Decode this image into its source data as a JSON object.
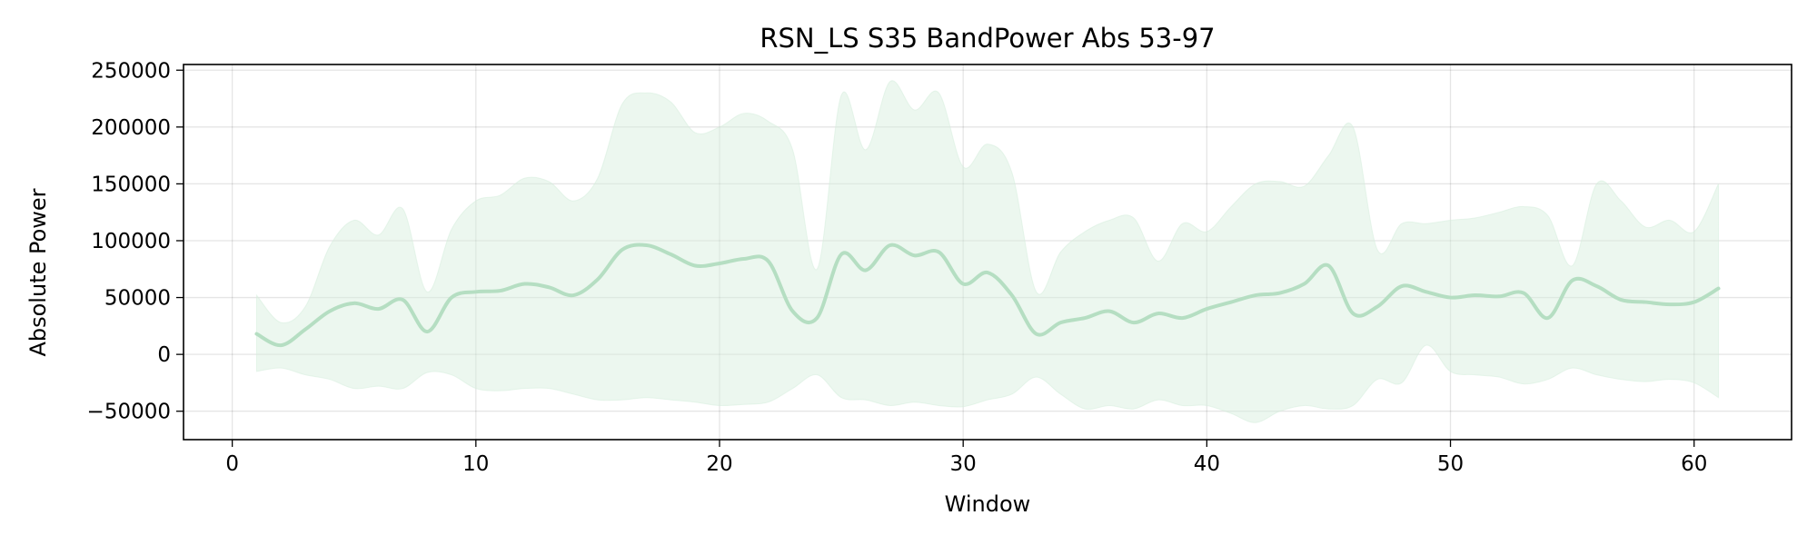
{
  "chart_data": {
    "type": "line",
    "title": "RSN_LS S35 BandPower Abs 53-97",
    "xlabel": "Window",
    "ylabel": "Absolute Power",
    "xlim": [
      -2,
      64
    ],
    "ylim": [
      -75000,
      255000
    ],
    "xticks": [
      0,
      10,
      20,
      30,
      40,
      50,
      60
    ],
    "yticks": [
      -50000,
      0,
      50000,
      100000,
      150000,
      200000,
      250000
    ],
    "ytick_labels": [
      "−50000",
      "0",
      "50000",
      "100000",
      "150000",
      "200000",
      "250000"
    ],
    "grid": true,
    "line_color": "#b5dec2",
    "band_color": "#d4eedb",
    "series": [
      {
        "x": [
          1,
          2,
          3,
          4,
          5,
          6,
          7,
          8,
          9,
          10,
          11,
          12,
          13,
          14,
          15,
          16,
          17,
          18,
          19,
          20,
          21,
          22,
          23,
          24,
          25,
          26,
          27,
          28,
          29,
          30,
          31,
          32,
          33,
          34,
          35,
          36,
          37,
          38,
          39,
          40,
          41,
          42,
          43,
          44,
          45,
          46,
          47,
          48,
          49,
          50,
          51,
          52,
          53,
          54,
          55,
          56,
          57,
          58,
          59,
          60,
          61
        ],
        "values": [
          18000,
          8000,
          22000,
          38000,
          45000,
          40000,
          48000,
          20000,
          50000,
          55000,
          56000,
          62000,
          59000,
          52000,
          66000,
          92000,
          96000,
          88000,
          78000,
          80000,
          84000,
          82000,
          38000,
          32000,
          88000,
          74000,
          96000,
          87000,
          90000,
          62000,
          72000,
          52000,
          18000,
          28000,
          32000,
          38000,
          28000,
          36000,
          32000,
          40000,
          46000,
          52000,
          54000,
          62000,
          78000,
          36000,
          42000,
          60000,
          55000,
          50000,
          52000,
          51000,
          54000,
          32000,
          65000,
          60000,
          48000,
          46000,
          44000,
          46000,
          58000
        ],
        "upper": [
          52000,
          28000,
          42000,
          95000,
          118000,
          105000,
          128000,
          55000,
          110000,
          135000,
          140000,
          155000,
          152000,
          135000,
          155000,
          220000,
          230000,
          222000,
          195000,
          200000,
          212000,
          205000,
          180000,
          75000,
          228000,
          180000,
          240000,
          215000,
          230000,
          165000,
          185000,
          160000,
          55000,
          90000,
          108000,
          118000,
          120000,
          82000,
          115000,
          108000,
          130000,
          150000,
          152000,
          148000,
          175000,
          200000,
          92000,
          115000,
          115000,
          118000,
          120000,
          125000,
          130000,
          122000,
          78000,
          150000,
          135000,
          112000,
          118000,
          108000,
          150000
        ],
        "lower": [
          -15000,
          -12000,
          -18000,
          -22000,
          -30000,
          -28000,
          -30000,
          -16000,
          -18000,
          -30000,
          -32000,
          -30000,
          -30000,
          -35000,
          -40000,
          -40000,
          -38000,
          -40000,
          -42000,
          -45000,
          -44000,
          -42000,
          -30000,
          -18000,
          -38000,
          -40000,
          -45000,
          -42000,
          -45000,
          -46000,
          -40000,
          -35000,
          -20000,
          -35000,
          -48000,
          -45000,
          -48000,
          -40000,
          -45000,
          -45000,
          -52000,
          -60000,
          -50000,
          -45000,
          -48000,
          -45000,
          -22000,
          -25000,
          8000,
          -15000,
          -18000,
          -20000,
          -26000,
          -22000,
          -12000,
          -18000,
          -22000,
          -24000,
          -22000,
          -25000,
          -38000
        ]
      }
    ]
  }
}
